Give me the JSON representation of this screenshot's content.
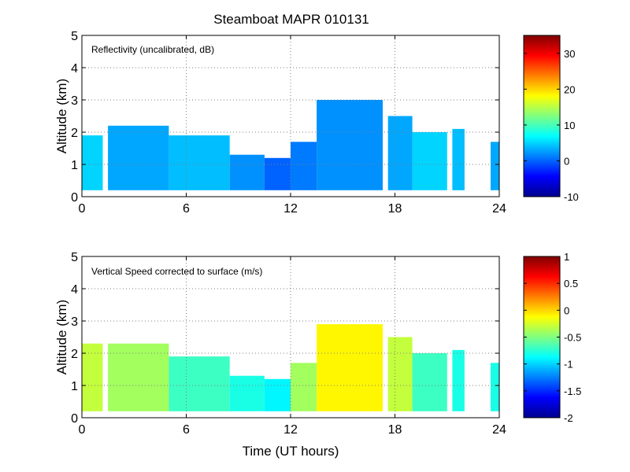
{
  "figure_title": "Steamboat MAPR 010131",
  "x_axis_label": "Time (UT hours)",
  "colors": {
    "jet_start": "#00008f",
    "jet_end": "#7f0000",
    "gridline": "#808080",
    "no_data": "#ffffff"
  },
  "chart_data": [
    {
      "type": "heatmap",
      "title": "Reflectivity (uncalibrated, dB)",
      "xlabel": "",
      "ylabel": "Altitude (km)",
      "xlim": [
        0,
        24
      ],
      "ylim": [
        0,
        5
      ],
      "xticks": [
        0,
        6,
        12,
        18,
        24
      ],
      "yticks": [
        0,
        1,
        2,
        3,
        4,
        5
      ],
      "grid": true,
      "colorbar": {
        "range": [
          -10,
          35
        ],
        "ticks": [
          -10,
          0,
          10,
          20,
          30
        ]
      },
      "segments": [
        {
          "t": [
            0.0,
            1.2
          ],
          "top_km": 1.9,
          "value_dB": 5
        },
        {
          "t": [
            1.2,
            1.5
          ],
          "top_km": 0.0,
          "value_dB": null
        },
        {
          "t": [
            1.5,
            5.0
          ],
          "top_km": 2.2,
          "value_dB": 3
        },
        {
          "t": [
            5.0,
            8.5
          ],
          "top_km": 1.9,
          "value_dB": 4
        },
        {
          "t": [
            8.5,
            10.5
          ],
          "top_km": 1.3,
          "value_dB": 2
        },
        {
          "t": [
            10.5,
            12.0
          ],
          "top_km": 1.2,
          "value_dB": 0
        },
        {
          "t": [
            12.0,
            13.5
          ],
          "top_km": 1.7,
          "value_dB": 1
        },
        {
          "t": [
            13.5,
            17.3
          ],
          "top_km": 3.0,
          "value_dB": 2
        },
        {
          "t": [
            17.3,
            17.6
          ],
          "top_km": 0.0,
          "value_dB": null
        },
        {
          "t": [
            17.6,
            19.0
          ],
          "top_km": 2.5,
          "value_dB": 3
        },
        {
          "t": [
            19.0,
            21.0
          ],
          "top_km": 2.0,
          "value_dB": 5
        },
        {
          "t": [
            21.0,
            21.3
          ],
          "top_km": 0.0,
          "value_dB": null
        },
        {
          "t": [
            21.3,
            22.0
          ],
          "top_km": 2.1,
          "value_dB": 4
        },
        {
          "t": [
            22.0,
            23.5
          ],
          "top_km": 0.0,
          "value_dB": null
        },
        {
          "t": [
            23.5,
            24.0
          ],
          "top_km": 1.7,
          "value_dB": 3
        }
      ]
    },
    {
      "type": "heatmap",
      "title": "Vertical Speed corrected to surface (m/s)",
      "xlabel": "Time (UT hours)",
      "ylabel": "Altitude (km)",
      "xlim": [
        0,
        24
      ],
      "ylim": [
        0,
        5
      ],
      "xticks": [
        0,
        6,
        12,
        18,
        24
      ],
      "yticks": [
        0,
        1,
        2,
        3,
        4,
        5
      ],
      "grid": true,
      "colorbar": {
        "range": [
          -2,
          1
        ],
        "ticks": [
          -2,
          -1.5,
          -1,
          -0.5,
          0,
          0.5,
          1
        ]
      },
      "segments": [
        {
          "t": [
            0.0,
            1.2
          ],
          "top_km": 2.3,
          "value_ms": -0.3
        },
        {
          "t": [
            1.2,
            1.5
          ],
          "top_km": 0.0,
          "value_ms": null
        },
        {
          "t": [
            1.5,
            5.0
          ],
          "top_km": 2.3,
          "value_ms": -0.4
        },
        {
          "t": [
            5.0,
            8.5
          ],
          "top_km": 1.9,
          "value_ms": -0.7
        },
        {
          "t": [
            8.5,
            10.5
          ],
          "top_km": 1.3,
          "value_ms": -0.8
        },
        {
          "t": [
            10.5,
            12.0
          ],
          "top_km": 1.2,
          "value_ms": -0.9
        },
        {
          "t": [
            12.0,
            13.5
          ],
          "top_km": 1.7,
          "value_ms": -0.4
        },
        {
          "t": [
            13.5,
            17.3
          ],
          "top_km": 2.9,
          "value_ms": -0.1
        },
        {
          "t": [
            17.3,
            17.6
          ],
          "top_km": 0.0,
          "value_ms": null
        },
        {
          "t": [
            17.6,
            19.0
          ],
          "top_km": 2.5,
          "value_ms": -0.3
        },
        {
          "t": [
            19.0,
            21.0
          ],
          "top_km": 2.0,
          "value_ms": -0.7
        },
        {
          "t": [
            21.0,
            21.3
          ],
          "top_km": 0.0,
          "value_ms": null
        },
        {
          "t": [
            21.3,
            22.0
          ],
          "top_km": 2.1,
          "value_ms": -0.8
        },
        {
          "t": [
            22.0,
            23.5
          ],
          "top_km": 0.0,
          "value_ms": null
        },
        {
          "t": [
            23.5,
            24.0
          ],
          "top_km": 1.7,
          "value_ms": -0.8
        }
      ]
    }
  ]
}
